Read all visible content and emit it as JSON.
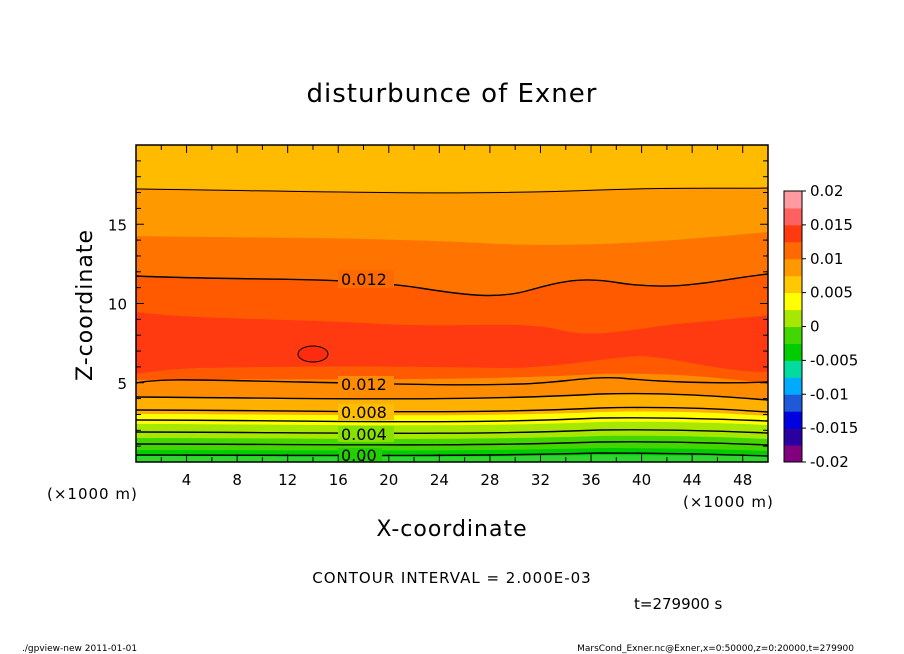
{
  "chart_data": {
    "type": "contour",
    "title": "disturbunce of Exner",
    "xlabel": "X-coordinate",
    "ylabel": "Z-coordinate",
    "x_unit": "(×1000 m)",
    "y_unit": "(×1000 m)",
    "xlim": [
      0,
      50
    ],
    "ylim": [
      0,
      20
    ],
    "x_ticks": [
      4,
      8,
      12,
      16,
      20,
      24,
      28,
      32,
      36,
      40,
      44,
      48
    ],
    "y_ticks": [
      5,
      10,
      15
    ],
    "colorbar": {
      "ticks": [
        "0.02",
        "0.015",
        "0.01",
        "0.005",
        "0",
        "-0.005",
        "-0.01",
        "-0.015",
        "-0.02"
      ],
      "range": [
        -0.02,
        0.02
      ],
      "colors": [
        "#800080",
        "#2a00a0",
        "#0000e0",
        "#1e5ad8",
        "#00aaff",
        "#00dca0",
        "#00cc00",
        "#44d600",
        "#a8e800",
        "#ffff00",
        "#ffc800",
        "#ff9900",
        "#ff6a00",
        "#ff3a10",
        "#ff6060",
        "#ff9aa0"
      ]
    },
    "contour_labels": [
      "0.012",
      "0.012",
      "0.008",
      "0.004",
      "0.00"
    ],
    "contour_interval": "CONTOUR INTERVAL = 2.000E-03",
    "time": "t=279900  s"
  },
  "footer": {
    "left": "./gpview-new   2011-01-01",
    "right": "MarsCond_Exner.nc@Exner,x=0:50000,z=0:20000,t=279900"
  }
}
